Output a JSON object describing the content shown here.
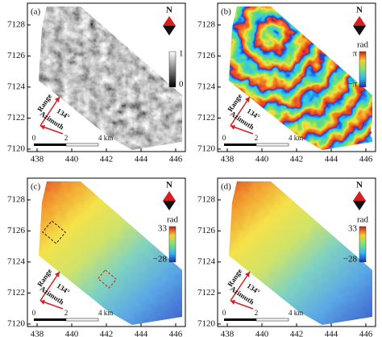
{
  "axes": {
    "xlim": [
      437.44,
      446.56
    ],
    "ylim": [
      7119.84,
      7129.4
    ],
    "xticks": [
      438,
      440,
      442,
      444,
      446
    ],
    "yticks": [
      7120,
      7122,
      7124,
      7126,
      7128
    ]
  },
  "panels": [
    {
      "label": "(a)",
      "colorbar": {
        "top": "1",
        "bottom": "0"
      }
    },
    {
      "label": "(b)",
      "colorbar": {
        "unit": "rad",
        "top": "π",
        "bottom": "−π"
      }
    },
    {
      "label": "(c)",
      "colorbar": {
        "unit": "rad",
        "top": "33",
        "bottom": "−28"
      }
    },
    {
      "label": "(d)",
      "colorbar": {
        "unit": "rad",
        "top": "33",
        "bottom": "−28"
      }
    }
  ],
  "north": "N",
  "range": "Range",
  "azimuth": "Azimuth",
  "angle": "134°",
  "scale": [
    "0",
    "2",
    "4 km"
  ]
}
